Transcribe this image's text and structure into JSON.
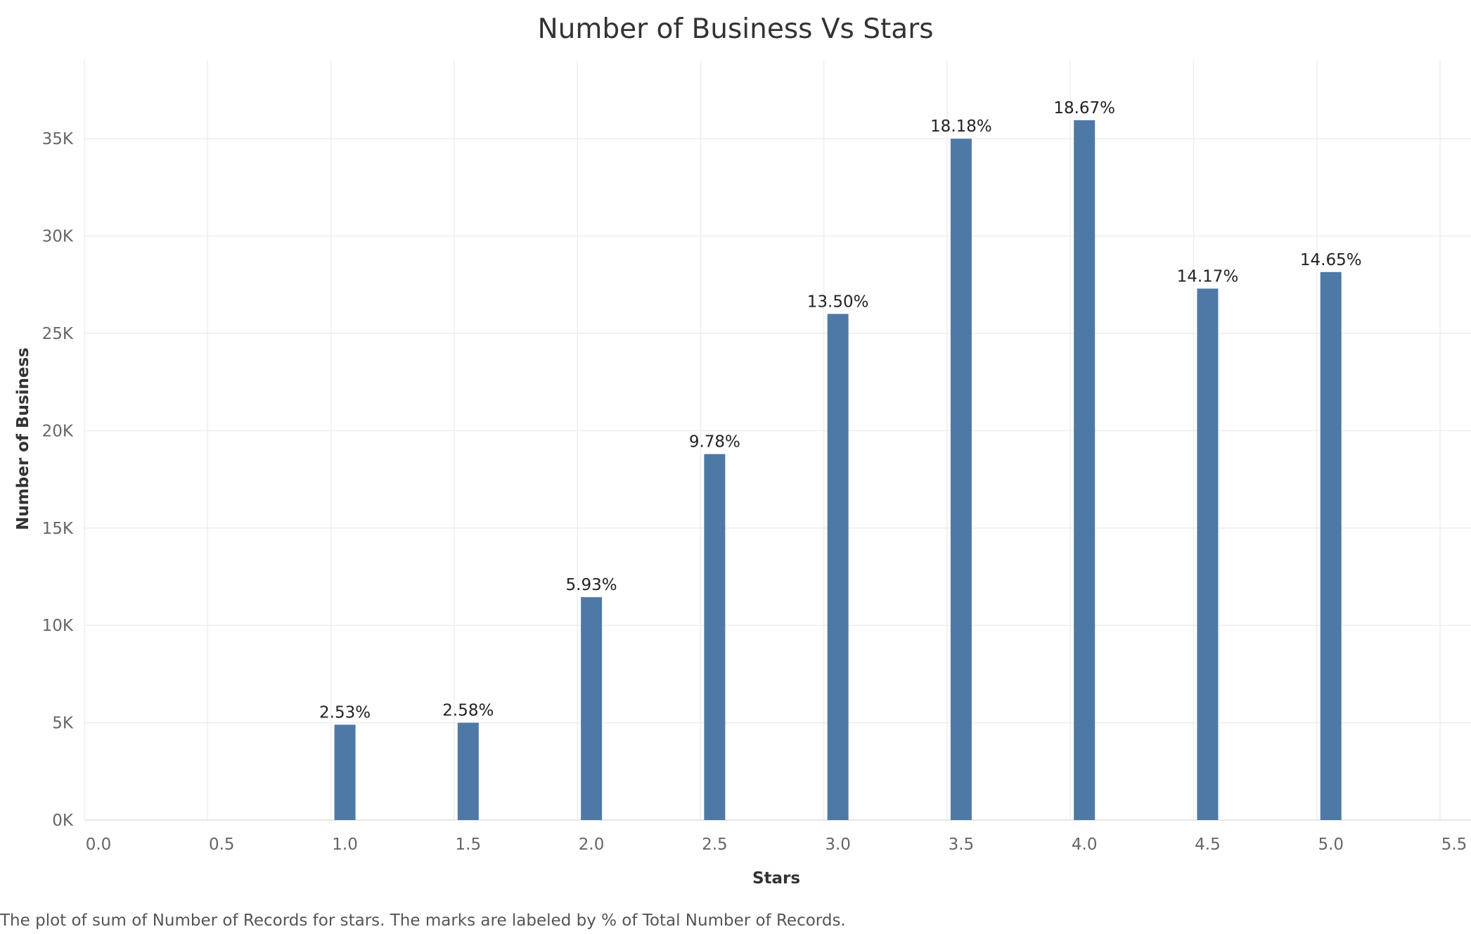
{
  "chart_data": {
    "type": "bar",
    "title": "Number of Business Vs Stars",
    "xlabel": "Stars",
    "ylabel": "Number of Business",
    "x_ticks": [
      "0.0",
      "0.5",
      "1.0",
      "1.5",
      "2.0",
      "2.5",
      "3.0",
      "3.5",
      "4.0",
      "4.5",
      "5.0",
      "5.5"
    ],
    "y_ticks": [
      "0K",
      "5K",
      "10K",
      "15K",
      "20K",
      "25K",
      "30K",
      "35K"
    ],
    "xlim": [
      0,
      5.5
    ],
    "ylim": [
      0,
      38000
    ],
    "grid": true,
    "bar_color": "#4e79a7",
    "series": [
      {
        "x": [
          1.0,
          1.5,
          2.0,
          2.5,
          3.0,
          3.5,
          4.0,
          4.5,
          5.0
        ],
        "values": [
          4900,
          5000,
          11450,
          18800,
          26000,
          35000,
          35950,
          27300,
          28150
        ],
        "labels": [
          "2.53%",
          "2.58%",
          "5.93%",
          "9.78%",
          "13.50%",
          "18.18%",
          "18.67%",
          "14.17%",
          "14.65%"
        ]
      }
    ]
  },
  "caption": "The plot of sum of Number of Records for stars.  The marks are labeled by % of Total Number of Records."
}
